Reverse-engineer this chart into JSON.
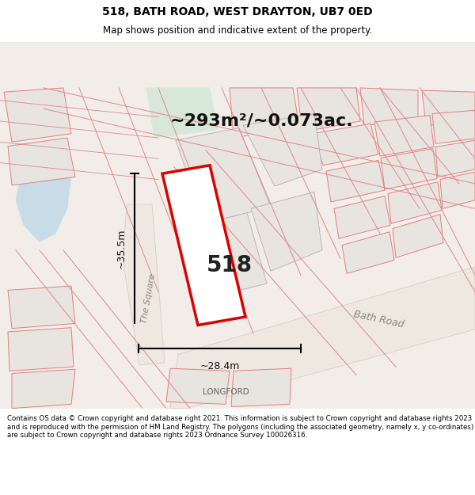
{
  "title_line1": "518, BATH ROAD, WEST DRAYTON, UB7 0ED",
  "title_line2": "Map shows position and indicative extent of the property.",
  "area_label": "~293m²/~0.073ac.",
  "property_number": "518",
  "dim_vertical": "~35.5m",
  "dim_horizontal": "~28.4m",
  "road_label_1": "The Square",
  "road_label_2": "Bath Road",
  "place_label": "LONGFORD",
  "footer_text": "Contains OS data © Crown copyright and database right 2021. This information is subject to Crown copyright and database rights 2023 and is reproduced with the permission of HM Land Registry. The polygons (including the associated geometry, namely x, y co-ordinates) are subject to Crown copyright and database rights 2023 Ordnance Survey 100026316.",
  "bg_map_color": "#f2ede8",
  "building_fill": "#e8e4e0",
  "red_outline_color": "#dd0000",
  "property_fill": "#ffffff",
  "water_color": "#c8dce8",
  "green_area_color": "#d8e8d8",
  "dim_line_color": "#000000",
  "header_bg": "#ffffff",
  "footer_bg": "#ffffff"
}
